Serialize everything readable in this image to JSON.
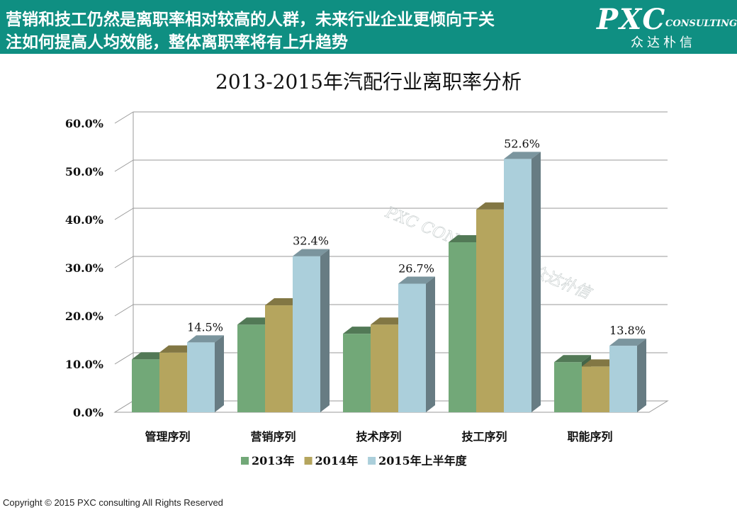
{
  "header": {
    "line1": "营销和技工仍然是离职率相对较高的人群，未来行业企业更倾向于关",
    "line2": "注如何提高人均效能，整体离职率将有上升趋势",
    "bg_color": "#0f8f82"
  },
  "logo": {
    "pxc": "PXC",
    "consulting": "CONSULTING",
    "chinese": "众达朴信"
  },
  "copyright": "Copyright © 2015 PXC consulting All Rights Reserved",
  "chart_data": {
    "type": "bar",
    "title": "2013-2015年汽配行业离职率分析",
    "categories": [
      "管理序列",
      "营销序列",
      "技术序列",
      "技工序列",
      "职能序列"
    ],
    "series": [
      {
        "name": "2013年",
        "color": "#72a878",
        "values": [
          11.0,
          18.2,
          16.3,
          35.3,
          10.4
        ]
      },
      {
        "name": "2014年",
        "color": "#b5a55e",
        "values": [
          12.4,
          22.2,
          18.2,
          42.1,
          9.5
        ]
      },
      {
        "name": "2015年上半年度",
        "color": "#abcfdb",
        "values": [
          14.5,
          32.4,
          26.7,
          52.6,
          13.8
        ]
      }
    ],
    "data_labels": [
      "14.5%",
      "32.4%",
      "26.7%",
      "52.6%",
      "13.8%"
    ],
    "y_ticks": [
      "0.0%",
      "10.0%",
      "20.0%",
      "30.0%",
      "40.0%",
      "50.0%",
      "60.0%"
    ],
    "ylim": [
      0,
      60
    ],
    "grid": true,
    "legend_position": "bottom",
    "watermark": "PXC CONSULTING 众达朴信"
  }
}
